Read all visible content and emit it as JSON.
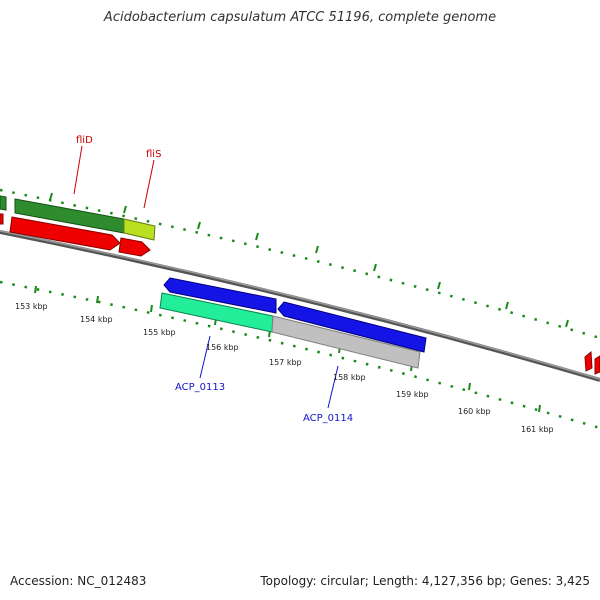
{
  "title": "Acidobacterium capsulatum ATCC 51196, complete genome",
  "footer": {
    "accession": "Accession: NC_012483",
    "summary": "Topology: circular; Length: 4,127,356 bp; Genes: 3,425"
  },
  "colors": {
    "green": "#2e8b2e",
    "red": "#ee0000",
    "blue": "#1414e6",
    "teal": "#22ee99",
    "grey": "#c0c0c0",
    "backbone": "#777777",
    "tick": "#1a8a1a",
    "label_red": "#cc0000",
    "label_blue": "#1414cc"
  },
  "ticks": [
    "153 kbp",
    "154 kbp",
    "155 kbp",
    "156 kbp",
    "157 kbp",
    "158 kbp",
    "159 kbp",
    "160 kbp",
    "161 kbp"
  ],
  "gene_labels": [
    {
      "name": "fliD",
      "color": "label_red"
    },
    {
      "name": "fliS",
      "color": "label_red"
    },
    {
      "name": "ACP_0113",
      "color": "label_blue"
    },
    {
      "name": "ACP_0114",
      "color": "label_blue"
    }
  ]
}
